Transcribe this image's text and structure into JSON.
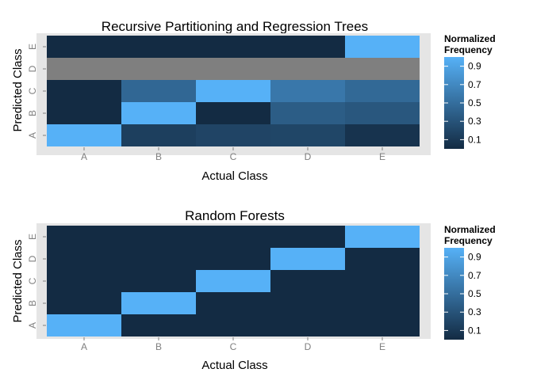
{
  "chart_data": [
    {
      "type": "heatmap",
      "title": "Recursive Partitioning and Regression Trees",
      "xlabel": "Actual Class",
      "ylabel": "Predicted Class",
      "x_categories": [
        "A",
        "B",
        "C",
        "D",
        "E"
      ],
      "y_categories": [
        "A",
        "B",
        "C",
        "D",
        "E"
      ],
      "values": [
        [
          1.0,
          0.15,
          0.19,
          0.2,
          0.06
        ],
        [
          0.0,
          1.0,
          0.0,
          0.37,
          0.33
        ],
        [
          0.0,
          0.45,
          1.0,
          0.57,
          0.46
        ],
        [
          null,
          null,
          null,
          null,
          null
        ],
        [
          0.0,
          0.0,
          0.0,
          0.0,
          1.0
        ]
      ],
      "na_color": "#7f7f7f",
      "legend": {
        "title": [
          "Normalized",
          "Frequency"
        ],
        "ticks": [
          "0.9",
          "0.7",
          "0.5",
          "0.3",
          "0.1"
        ],
        "tick_values": [
          0.9,
          0.7,
          0.5,
          0.3,
          0.1
        ],
        "position": "right"
      },
      "color_low": "#132b43",
      "color_high": "#56b1f7"
    },
    {
      "type": "heatmap",
      "title": "Random Forests",
      "xlabel": "Actual Class",
      "ylabel": "Predicted Class",
      "x_categories": [
        "A",
        "B",
        "C",
        "D",
        "E"
      ],
      "y_categories": [
        "A",
        "B",
        "C",
        "D",
        "E"
      ],
      "values": [
        [
          1.0,
          0.0,
          0.0,
          0.0,
          0.0
        ],
        [
          0.0,
          1.0,
          0.0,
          0.0,
          0.0
        ],
        [
          0.0,
          0.0,
          1.0,
          0.0,
          0.0
        ],
        [
          0.0,
          0.0,
          0.0,
          1.0,
          0.0
        ],
        [
          0.0,
          0.0,
          0.0,
          0.0,
          1.0
        ]
      ],
      "legend": {
        "title": [
          "Normalized",
          "Frequency"
        ],
        "ticks": [
          "0.9",
          "0.7",
          "0.5",
          "0.3",
          "0.1"
        ],
        "tick_values": [
          0.9,
          0.7,
          0.5,
          0.3,
          0.1
        ],
        "position": "right"
      },
      "color_low": "#132b43",
      "color_high": "#56b1f7"
    }
  ]
}
